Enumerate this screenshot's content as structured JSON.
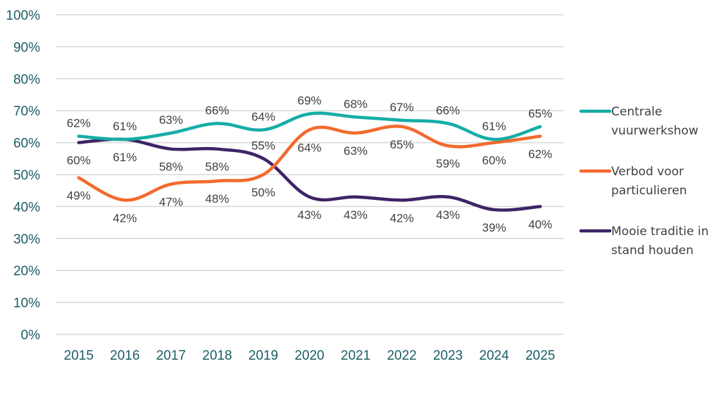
{
  "chart_data": {
    "type": "line",
    "title": "",
    "xlabel": "",
    "ylabel": "",
    "categories": [
      "2015",
      "2016",
      "2017",
      "2018",
      "2019",
      "2020",
      "2021",
      "2022",
      "2023",
      "2024",
      "2025"
    ],
    "ylim": [
      0,
      100
    ],
    "yticks": [
      "0%",
      "10%",
      "20%",
      "30%",
      "40%",
      "50%",
      "60%",
      "70%",
      "80%",
      "90%",
      "100%"
    ],
    "grid": true,
    "legend_position": "right",
    "smooth": true,
    "series": [
      {
        "name": "Centrale vuurwerkshow",
        "legend_lines": [
          "Centrale",
          "vuurwerkshow"
        ],
        "color": "#14ada6",
        "values": [
          62,
          61,
          63,
          66,
          64,
          69,
          68,
          67,
          66,
          61,
          65
        ],
        "labels": [
          "62%",
          "61%",
          "63%",
          "66%",
          "64%",
          "69%",
          "68%",
          "67%",
          "66%",
          "61%",
          "65%"
        ],
        "label_side": [
          "above",
          "above",
          "above",
          "above",
          "above",
          "above",
          "above",
          "above",
          "above",
          "above",
          "above"
        ]
      },
      {
        "name": "Verbod voor particulieren",
        "legend_lines": [
          "Verbod voor",
          "particulieren"
        ],
        "color": "#f26a2e",
        "values": [
          49,
          42,
          47,
          48,
          50,
          64,
          63,
          65,
          59,
          60,
          62
        ],
        "labels": [
          "49%",
          "42%",
          "47%",
          "48%",
          "50%",
          "64%",
          "63%",
          "65%",
          "59%",
          "60%",
          "62%"
        ],
        "label_side": [
          "below",
          "below",
          "below",
          "below",
          "below",
          "below",
          "below",
          "below",
          "below",
          "below",
          "below"
        ]
      },
      {
        "name": "Mooie traditie in stand houden",
        "legend_lines": [
          "Mooie traditie in",
          "stand houden"
        ],
        "color": "#3f2466",
        "values": [
          60,
          61,
          58,
          58,
          55,
          43,
          43,
          42,
          43,
          39,
          40
        ],
        "labels": [
          "60%",
          "61%",
          "58%",
          "58%",
          "55%",
          "43%",
          "43%",
          "42%",
          "43%",
          "39%",
          "40%"
        ],
        "label_side": [
          "below",
          "below",
          "below",
          "below",
          "above",
          "below",
          "below",
          "below",
          "below",
          "below",
          "below"
        ]
      }
    ]
  }
}
